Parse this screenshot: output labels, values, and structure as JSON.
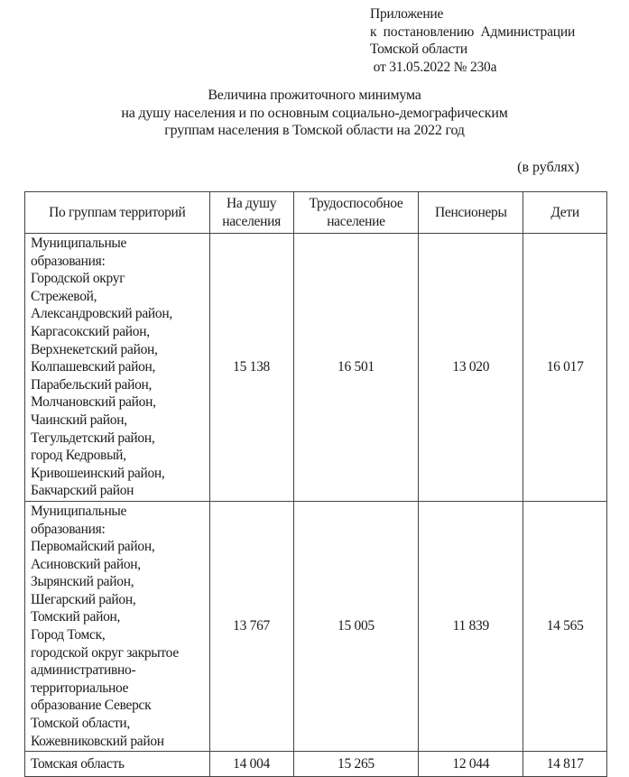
{
  "appendix": {
    "lines": [
      "Приложение",
      "к  постановлению  Администрации",
      "Томской области",
      " от 31.05.2022 № 230а"
    ]
  },
  "title": {
    "lines": [
      "Величина прожиточного минимума",
      "на душу населения и по основным социально-демографическим",
      "группам населения в Томской области на 2022 год"
    ]
  },
  "unit": "(в рублях)",
  "table": {
    "headers": [
      "По группам территорий",
      "На душу\nнаселения",
      "Трудоспособное\nнаселение",
      "Пенсионеры",
      "Дети"
    ],
    "rows": [
      {
        "territory": "Муниципальные\nобразования:\nГородской округ\nСтрежевой,\nАлександровский район,\nКаргасокский район,\nВерхнекетский район,\nКолпашевский район,\nПарабельский район,\nМолчановский район,\nЧаинский район,\nТегульдетский район,\nгород Кедровый,\nКривошеинский район,\nБакчарский район",
        "per_capita": "15 138",
        "working_age": "16 501",
        "pensioners": "13 020",
        "children": "16 017"
      },
      {
        "territory": "Муниципальные\nобразования:\nПервомайский район,\nАсиновский район,\nЗырянский район,\nШегарский район,\nТомский район,\nГород Томск,\nгородской округ закрытое\nадминистративно-\nтерриториальное\nобразование Северск\nТомской области,\nКожевниковский район",
        "per_capita": "13 767",
        "working_age": "15 005",
        "pensioners": "11 839",
        "children": "14 565"
      },
      {
        "territory": "Томская область",
        "per_capita": "14 004",
        "working_age": "15 265",
        "pensioners": "12 044",
        "children": "14 817"
      }
    ]
  }
}
